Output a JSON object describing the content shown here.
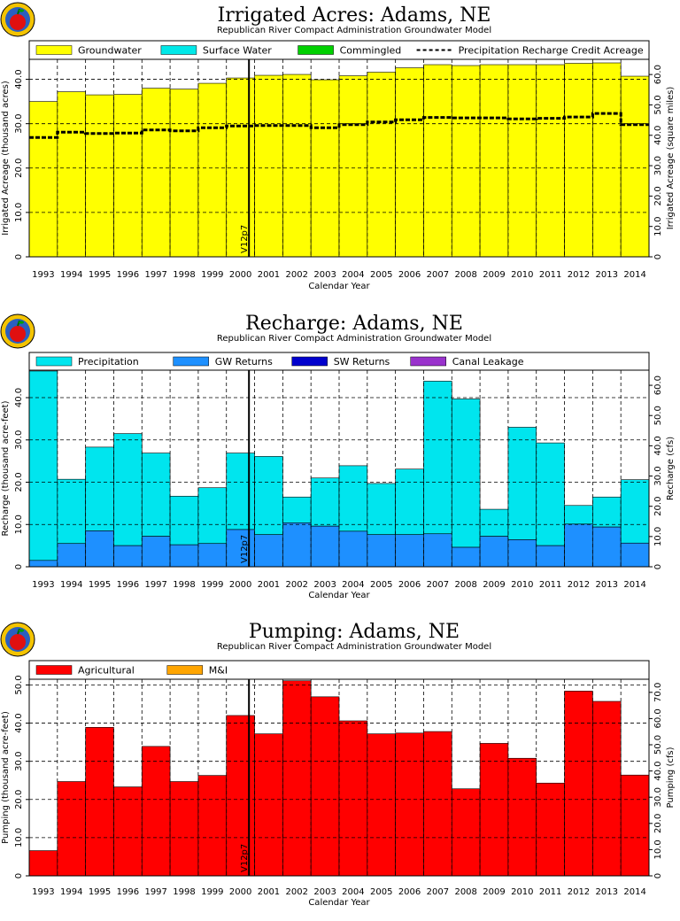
{
  "colors": {
    "groundwater": "#ffff00",
    "surface_water": "#00e8e8",
    "commingled": "#00d000",
    "precipitation": "#00e5ee",
    "gw_returns": "#1e90ff",
    "sw_returns": "#0000cd",
    "canal_leakage": "#9932cc",
    "agricultural": "#ff0000",
    "mi": "#ffa500"
  },
  "logo_icon": "apple-logo-icon",
  "chart_data": [
    {
      "type": "area",
      "title": "Irrigated Acres: Adams, NE",
      "subtitle": "Republican River Compact Administration Groundwater Model",
      "xlabel": "Calendar Year",
      "ylabel": "Irrigated Acreage (thousand acres)",
      "ylabel_right": "Irrigated Acreage (square miles)",
      "ylim": [
        0,
        44.5
      ],
      "yticks": [
        "0",
        "10.0",
        "20.0",
        "30.0",
        "40.0"
      ],
      "yticks_right": [
        "0",
        "10.0",
        "20.0",
        "30.0",
        "40.0",
        "50.0",
        "60.0"
      ],
      "categories": [
        "1993",
        "1994",
        "1995",
        "1996",
        "1997",
        "1998",
        "1999",
        "2000",
        "2001",
        "2002",
        "2003",
        "2004",
        "2005",
        "2006",
        "2007",
        "2008",
        "2009",
        "2010",
        "2011",
        "2012",
        "2013",
        "2014"
      ],
      "vline_label": "V12p7",
      "legend": [
        {
          "label": "Groundwater",
          "color_key": "groundwater",
          "kind": "box"
        },
        {
          "label": "Surface Water",
          "color_key": "surface_water",
          "kind": "box"
        },
        {
          "label": "Commingled",
          "color_key": "commingled",
          "kind": "box"
        },
        {
          "label": "Precipitation Recharge Credit Acreage",
          "color_key": "",
          "kind": "dash"
        }
      ],
      "series": [
        {
          "name": "Groundwater",
          "color_key": "groundwater",
          "values": [
            35.0,
            37.2,
            36.5,
            36.6,
            38.0,
            37.8,
            39.1,
            40.3,
            40.9,
            41.1,
            39.9,
            40.8,
            41.6,
            42.6,
            43.3,
            43.1,
            43.3,
            43.3,
            43.3,
            43.6,
            43.7,
            40.7
          ]
        }
      ],
      "line": {
        "name": "Precipitation Recharge Credit Acreage",
        "values": [
          26.9,
          28.1,
          27.8,
          27.9,
          28.6,
          28.4,
          29.1,
          29.5,
          29.6,
          29.6,
          29.1,
          29.8,
          30.4,
          30.9,
          31.4,
          31.3,
          31.3,
          31.1,
          31.2,
          31.5,
          32.3,
          29.8
        ]
      }
    },
    {
      "type": "area",
      "title": "Recharge: Adams, NE",
      "subtitle": "Republican River Compact Administration Groundwater Model",
      "xlabel": "Calendar Year",
      "ylabel": "Recharge (thousand acre-feet)",
      "ylabel_right": "Recharge (cfs)",
      "ylim": [
        0,
        46.5
      ],
      "yticks": [
        "0",
        "10.0",
        "20.0",
        "30.0",
        "40.0"
      ],
      "yticks_right": [
        "0",
        "10.0",
        "20.0",
        "30.0",
        "40.0",
        "50.0",
        "60.0"
      ],
      "categories": [
        "1993",
        "1994",
        "1995",
        "1996",
        "1997",
        "1998",
        "1999",
        "2000",
        "2001",
        "2002",
        "2003",
        "2004",
        "2005",
        "2006",
        "2007",
        "2008",
        "2009",
        "2010",
        "2011",
        "2012",
        "2013",
        "2014"
      ],
      "vline_label": "V12p7",
      "legend": [
        {
          "label": "Precipitation",
          "color_key": "precipitation",
          "kind": "box"
        },
        {
          "label": "GW Returns",
          "color_key": "gw_returns",
          "kind": "box"
        },
        {
          "label": "SW Returns",
          "color_key": "sw_returns",
          "kind": "box"
        },
        {
          "label": "Canal Leakage",
          "color_key": "canal_leakage",
          "kind": "box"
        }
      ],
      "stack": [
        {
          "name": "GW Returns",
          "color_key": "gw_returns",
          "values": [
            1.5,
            5.5,
            8.5,
            5.0,
            7.2,
            5.2,
            5.5,
            8.8,
            7.6,
            10.4,
            9.6,
            8.4,
            7.6,
            7.6,
            7.8,
            4.6,
            7.2,
            6.4,
            5.0,
            10.1,
            9.4,
            5.6
          ]
        },
        {
          "name": "Precipitation",
          "color_key": "precipitation",
          "totals": [
            46.3,
            20.7,
            28.3,
            31.5,
            26.9,
            16.7,
            18.7,
            26.9,
            26.1,
            16.5,
            21.0,
            23.9,
            19.7,
            23.1,
            43.9,
            39.7,
            13.6,
            33.0,
            29.3,
            14.5,
            16.5,
            20.6
          ]
        }
      ]
    },
    {
      "type": "bar",
      "title": "Pumping: Adams, NE",
      "subtitle": "Republican River Compact Administration Groundwater Model",
      "xlabel": "Calendar Year",
      "ylabel": "Pumping (thousand acre-feet)",
      "ylabel_right": "Pumping (cfs)",
      "ylim": [
        0,
        51.5
      ],
      "yticks": [
        "0",
        "10.0",
        "20.0",
        "30.0",
        "40.0",
        "50.0"
      ],
      "yticks_right": [
        "0",
        "10.0",
        "20.0",
        "30.0",
        "40.0",
        "50.0",
        "60.0",
        "70.0"
      ],
      "categories": [
        "1993",
        "1994",
        "1995",
        "1996",
        "1997",
        "1998",
        "1999",
        "2000",
        "2001",
        "2002",
        "2003",
        "2004",
        "2005",
        "2006",
        "2007",
        "2008",
        "2009",
        "2010",
        "2011",
        "2012",
        "2013",
        "2014"
      ],
      "vline_label": "V12p7",
      "legend": [
        {
          "label": "Agricultural",
          "color_key": "agricultural",
          "kind": "box"
        },
        {
          "label": "M&I",
          "color_key": "mi",
          "kind": "box"
        }
      ],
      "series": [
        {
          "name": "Agricultural",
          "color_key": "agricultural",
          "values": [
            6.6,
            24.7,
            38.9,
            23.3,
            33.9,
            24.7,
            26.3,
            42.0,
            37.2,
            51.1,
            46.9,
            40.6,
            37.2,
            37.4,
            37.8,
            22.8,
            34.7,
            30.8,
            24.3,
            48.4,
            45.7,
            26.4
          ]
        }
      ]
    }
  ]
}
